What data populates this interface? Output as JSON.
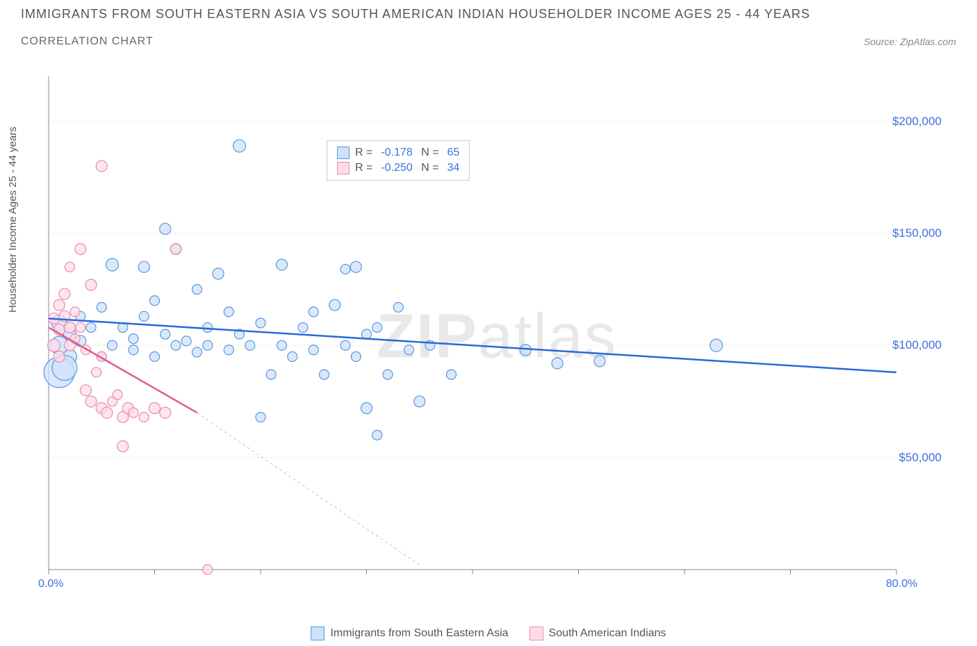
{
  "header": {
    "title": "IMMIGRANTS FROM SOUTH EASTERN ASIA VS SOUTH AMERICAN INDIAN HOUSEHOLDER INCOME AGES 25 - 44 YEARS",
    "subtitle": "CORRELATION CHART",
    "source_label": "Source:",
    "source_name": "ZipAtlas.com"
  },
  "chart": {
    "type": "scatter",
    "ylabel": "Householder Income Ages 25 - 44 years",
    "xlim": [
      0,
      80
    ],
    "ylim": [
      0,
      220000
    ],
    "xticks": [
      0,
      10,
      20,
      30,
      40,
      50,
      60,
      70,
      80
    ],
    "yticks": [
      50000,
      100000,
      150000,
      200000
    ],
    "xtick_labels": {
      "0": "0.0%",
      "80": "80.0%"
    },
    "ytick_labels": {
      "50000": "$50,000",
      "100000": "$100,000",
      "150000": "$150,000",
      "200000": "$200,000"
    },
    "grid_color": "#e5e5e5",
    "axis_color": "#888888",
    "background_color": "#ffffff",
    "watermark": "ZIPatlas",
    "series": [
      {
        "name": "Immigrants from South Eastern Asia",
        "marker_fill": "#cde1f8",
        "marker_stroke": "#5a96e0",
        "line_color": "#2968d8",
        "r_value": "-0.178",
        "n_value": "65",
        "trend": {
          "x1": 0,
          "y1": 112000,
          "x2": 80,
          "y2": 88000
        },
        "points": [
          [
            1,
            100000,
            13
          ],
          [
            1,
            110000,
            11
          ],
          [
            2,
            95000,
            10
          ],
          [
            2,
            105000,
            9
          ],
          [
            2,
            108000,
            8
          ],
          [
            3,
            102000,
            8
          ],
          [
            3,
            113000,
            7
          ],
          [
            4,
            108000,
            7
          ],
          [
            5,
            95000,
            7
          ],
          [
            5,
            117000,
            7
          ],
          [
            6,
            136000,
            9
          ],
          [
            6,
            100000,
            7
          ],
          [
            7,
            108000,
            7
          ],
          [
            8,
            98000,
            7
          ],
          [
            8,
            103000,
            7
          ],
          [
            9,
            135000,
            8
          ],
          [
            9,
            113000,
            7
          ],
          [
            10,
            120000,
            7
          ],
          [
            10,
            95000,
            7
          ],
          [
            11,
            152000,
            8
          ],
          [
            11,
            105000,
            7
          ],
          [
            12,
            100000,
            7
          ],
          [
            12,
            143000,
            7
          ],
          [
            13,
            102000,
            7
          ],
          [
            14,
            125000,
            7
          ],
          [
            14,
            97000,
            7
          ],
          [
            15,
            108000,
            7
          ],
          [
            15,
            100000,
            7
          ],
          [
            16,
            132000,
            8
          ],
          [
            17,
            115000,
            7
          ],
          [
            17,
            98000,
            7
          ],
          [
            18,
            189000,
            9
          ],
          [
            18,
            105000,
            7
          ],
          [
            19,
            100000,
            7
          ],
          [
            20,
            68000,
            7
          ],
          [
            20,
            110000,
            7
          ],
          [
            21,
            87000,
            7
          ],
          [
            22,
            136000,
            8
          ],
          [
            22,
            100000,
            7
          ],
          [
            23,
            95000,
            7
          ],
          [
            24,
            108000,
            7
          ],
          [
            25,
            98000,
            7
          ],
          [
            25,
            115000,
            7
          ],
          [
            26,
            87000,
            7
          ],
          [
            27,
            118000,
            8
          ],
          [
            28,
            134000,
            7
          ],
          [
            28,
            100000,
            7
          ],
          [
            29,
            135000,
            8
          ],
          [
            29,
            95000,
            7
          ],
          [
            30,
            72000,
            8
          ],
          [
            30,
            105000,
            7
          ],
          [
            31,
            60000,
            7
          ],
          [
            31,
            108000,
            7
          ],
          [
            32,
            87000,
            7
          ],
          [
            33,
            117000,
            7
          ],
          [
            34,
            98000,
            7
          ],
          [
            35,
            75000,
            8
          ],
          [
            36,
            100000,
            7
          ],
          [
            38,
            87000,
            7
          ],
          [
            45,
            98000,
            8
          ],
          [
            48,
            92000,
            8
          ],
          [
            52,
            93000,
            8
          ],
          [
            63,
            100000,
            9
          ],
          [
            1,
            88000,
            22
          ],
          [
            1.5,
            90000,
            18
          ]
        ]
      },
      {
        "name": "South American Indians",
        "marker_fill": "#fddce8",
        "marker_stroke": "#e88bb0",
        "line_color": "#e05a8a",
        "r_value": "-0.250",
        "n_value": "34",
        "trend": {
          "x1": 0,
          "y1": 108000,
          "x2": 14,
          "y2": 70000
        },
        "trend_dash": {
          "x1": 14,
          "y1": 70000,
          "x2": 35,
          "y2": 2000
        },
        "points": [
          [
            0.5,
            100000,
            9
          ],
          [
            0.5,
            112000,
            8
          ],
          [
            1,
            107000,
            8
          ],
          [
            1,
            118000,
            8
          ],
          [
            1,
            95000,
            8
          ],
          [
            1.5,
            123000,
            8
          ],
          [
            1.5,
            113000,
            8
          ],
          [
            2,
            108000,
            8
          ],
          [
            2,
            135000,
            7
          ],
          [
            2,
            100000,
            8
          ],
          [
            2.5,
            115000,
            7
          ],
          [
            2.5,
            103000,
            7
          ],
          [
            3,
            143000,
            8
          ],
          [
            3,
            108000,
            7
          ],
          [
            3.5,
            80000,
            8
          ],
          [
            3.5,
            98000,
            7
          ],
          [
            4,
            127000,
            8
          ],
          [
            4,
            75000,
            8
          ],
          [
            4.5,
            88000,
            7
          ],
          [
            5,
            180000,
            8
          ],
          [
            5,
            72000,
            8
          ],
          [
            5,
            95000,
            7
          ],
          [
            5.5,
            70000,
            8
          ],
          [
            6,
            75000,
            7
          ],
          [
            6.5,
            78000,
            7
          ],
          [
            7,
            68000,
            8
          ],
          [
            7,
            55000,
            8
          ],
          [
            7.5,
            72000,
            8
          ],
          [
            8,
            70000,
            7
          ],
          [
            9,
            68000,
            7
          ],
          [
            10,
            72000,
            8
          ],
          [
            11,
            70000,
            8
          ],
          [
            12,
            143000,
            8
          ],
          [
            15,
            0,
            7
          ]
        ]
      }
    ],
    "bottom_legend": [
      {
        "swatch": "blue",
        "label": "Immigrants from South Eastern Asia"
      },
      {
        "swatch": "pink",
        "label": "South American Indians"
      }
    ]
  }
}
